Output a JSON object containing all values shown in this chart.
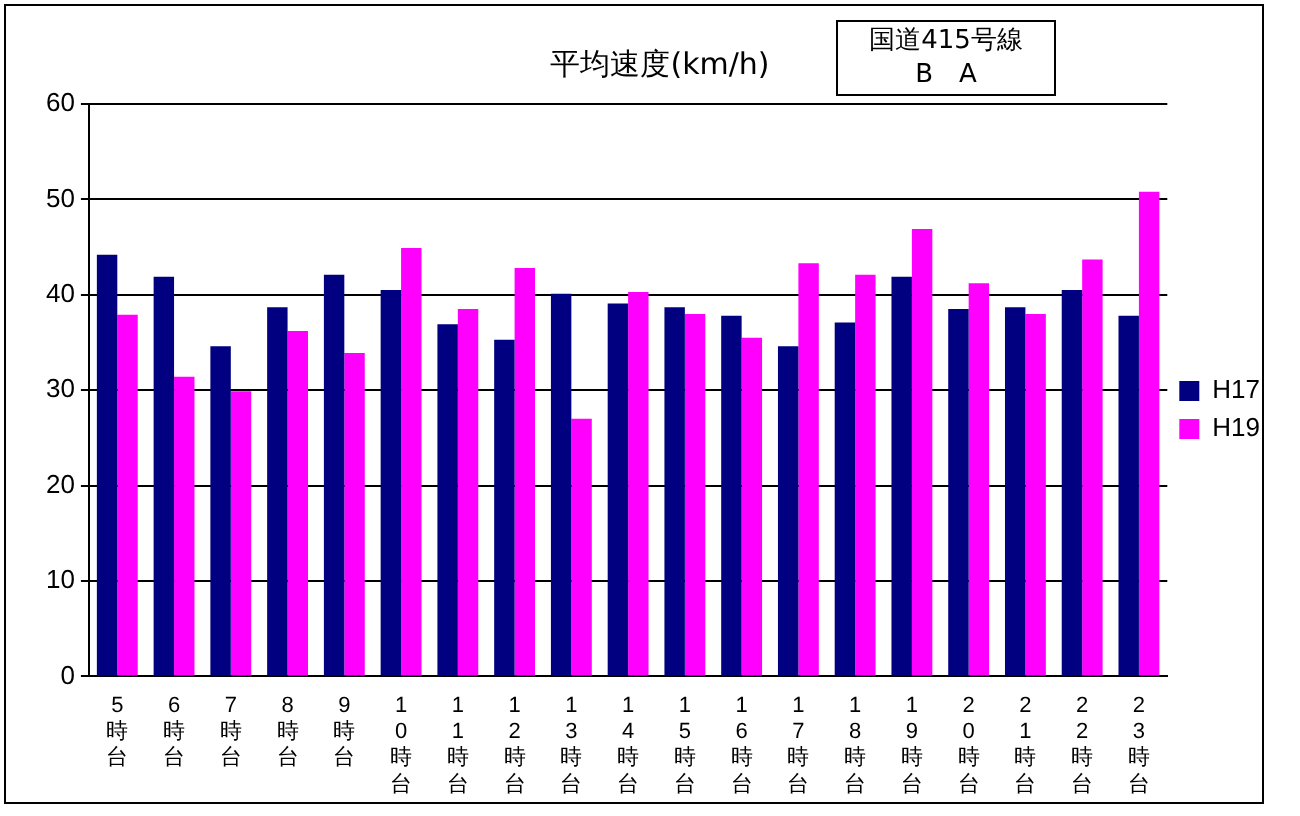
{
  "chart_data": {
    "type": "bar",
    "title": "平均速度(km/h)",
    "annotations": [
      "国道415号線",
      "B　A"
    ],
    "categories": [
      "5時台",
      "6時台",
      "7時台",
      "8時台",
      "9時台",
      "10時台",
      "11時台",
      "12時台",
      "13時台",
      "14時台",
      "15時台",
      "16時台",
      "17時台",
      "18時台",
      "19時台",
      "20時台",
      "21時台",
      "22時台",
      "23時台"
    ],
    "series": [
      {
        "name": "H17",
        "color": "#000080",
        "values": [
          44.2,
          41.9,
          34.6,
          38.7,
          42.1,
          40.5,
          36.9,
          35.3,
          40.1,
          39.1,
          38.7,
          37.8,
          34.6,
          37.1,
          41.9,
          38.5,
          38.7,
          40.5,
          37.8
        ]
      },
      {
        "name": "H19",
        "color": "#ff00ff",
        "values": [
          37.9,
          31.4,
          29.9,
          36.2,
          33.9,
          44.9,
          38.5,
          42.8,
          27.0,
          40.3,
          38.0,
          35.5,
          43.3,
          42.1,
          46.9,
          41.2,
          38.0,
          43.7,
          50.8
        ]
      }
    ],
    "ylim": [
      0,
      60
    ],
    "yticks": [
      0,
      10,
      20,
      30,
      40,
      50,
      60
    ],
    "grid": "y",
    "legend": "right"
  }
}
